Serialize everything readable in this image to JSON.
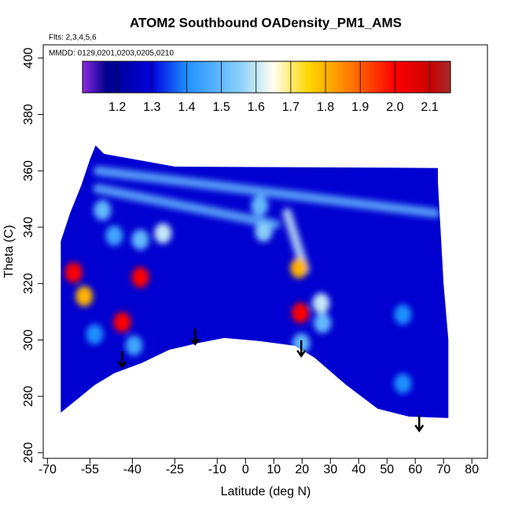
{
  "chart_data": {
    "type": "curtain",
    "title": "ATOM2 Southbound OADensity_PM1_AMS",
    "notes": [
      "Flts: 2,3,4,5,6",
      "MMDD: 0129,0201,0203,0205,0210"
    ],
    "xlabel": "Latitude (deg N)",
    "ylabel": "Theta (C)",
    "xlim": [
      -71.5,
      85.5
    ],
    "ylim": [
      258,
      404.7
    ],
    "xticks": [
      -70,
      -55,
      -40,
      -25,
      -10,
      0,
      10,
      20,
      30,
      40,
      50,
      60,
      70,
      80
    ],
    "yticks": [
      260,
      280,
      300,
      320,
      340,
      360,
      380,
      400
    ],
    "color_lim": [
      1.1,
      2.16
    ],
    "color_ticks": [
      1.2,
      1.3,
      1.4,
      1.5,
      1.6,
      1.7,
      1.8,
      1.9,
      {
        "value": 2,
        "label": "2.0"
      },
      2.1
    ],
    "colorscale": [
      [
        1.1,
        "#8a2be2"
      ],
      [
        1.17,
        "#00008b"
      ],
      [
        1.3,
        "#0000dd"
      ],
      [
        1.4,
        "#1e90ff"
      ],
      [
        1.55,
        "#87cefa"
      ],
      [
        1.65,
        "#fffff0"
      ],
      [
        1.75,
        "#ffd700"
      ],
      [
        1.85,
        "#ff8c00"
      ],
      [
        2.0,
        "#ff0000"
      ],
      [
        2.1,
        "#cd0000"
      ],
      [
        2.16,
        "#a52a2a"
      ]
    ],
    "background_value": 1.28,
    "region": {
      "lat": [
        -65.3,
        -62,
        -58,
        -55,
        -53,
        -50,
        -25,
        68,
        68,
        70,
        71.7,
        71.7,
        57.8,
        46.7,
        35.6,
        24.4,
        17.5,
        5,
        -7.5,
        -17.2,
        -27,
        -36.7,
        -46.4,
        -53.3,
        -65.3
      ],
      "theta": [
        335,
        345,
        355,
        364,
        369,
        366,
        361.5,
        361,
        356,
        320,
        300,
        272.3,
        272.8,
        275.6,
        284,
        293.7,
        297.9,
        299.6,
        300.7,
        298.8,
        296.5,
        291.8,
        288.2,
        284,
        274.2
      ]
    },
    "streaks": [
      {
        "from": [
          -52,
          360
        ],
        "to": [
          67,
          345
        ],
        "value": 1.5
      },
      {
        "from": [
          -52.2,
          353.7
        ],
        "to": [
          10.6,
          341
        ],
        "value": 1.5
      },
      {
        "from": [
          14.7,
          345
        ],
        "to": [
          21,
          325
        ],
        "value": 1.6
      }
    ],
    "features": [
      {
        "lat": -57,
        "theta": 315.5,
        "value": 1.8
      },
      {
        "lat": -60.8,
        "theta": 323.9,
        "value": 2.0
      },
      {
        "lat": -43.6,
        "theta": 306.3,
        "value": 2.0
      },
      {
        "lat": -37.2,
        "theta": 322.2,
        "value": 2.0
      },
      {
        "lat": -37.2,
        "theta": 335.6,
        "value": 1.5
      },
      {
        "lat": -29.2,
        "theta": 337.8,
        "value": 1.6
      },
      {
        "lat": -46.4,
        "theta": 337,
        "value": 1.45
      },
      {
        "lat": -50.6,
        "theta": 346,
        "value": 1.5
      },
      {
        "lat": 5,
        "theta": 347.6,
        "value": 1.5
      },
      {
        "lat": 6.4,
        "theta": 338.4,
        "value": 1.55
      },
      {
        "lat": 18.9,
        "theta": 325.5,
        "value": 1.8
      },
      {
        "lat": 19.4,
        "theta": 309.6,
        "value": 2.0
      },
      {
        "lat": 26.7,
        "theta": 313,
        "value": 1.6
      },
      {
        "lat": 27.2,
        "theta": 306,
        "value": 1.5
      },
      {
        "lat": 19.7,
        "theta": 298.8,
        "value": 1.5
      },
      {
        "lat": -39.4,
        "theta": 298,
        "value": 1.45
      },
      {
        "lat": -53.3,
        "theta": 302,
        "value": 1.4
      },
      {
        "lat": 55.6,
        "theta": 309,
        "value": 1.4
      },
      {
        "lat": 55.6,
        "theta": 284.5,
        "value": 1.4
      }
    ],
    "arrows": [
      {
        "lat": -43.6,
        "theta": 290.4
      },
      {
        "lat": -17.8,
        "theta": 298.5
      },
      {
        "lat": 19.7,
        "theta": 294.3
      },
      {
        "lat": 61.4,
        "theta": 267.8
      }
    ]
  }
}
